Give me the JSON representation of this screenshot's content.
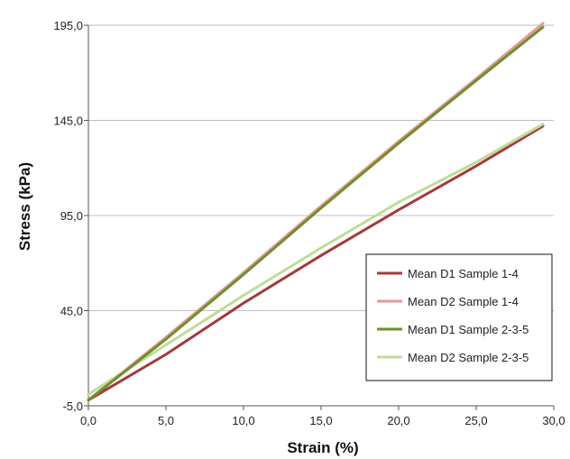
{
  "chart_data": {
    "type": "line",
    "title": "",
    "xlabel": "Strain (%)",
    "ylabel": "Stress (kPa)",
    "xlim": [
      0,
      30
    ],
    "ylim": [
      -5,
      195
    ],
    "x_ticks": [
      "0,0",
      "5,0",
      "10,0",
      "15,0",
      "20,0",
      "25,0",
      "30,0"
    ],
    "y_ticks": [
      "-5,0",
      "45,0",
      "95,0",
      "145,0",
      "195,0"
    ],
    "grid": "horizontal",
    "legend_position": "bottom-right",
    "series": [
      {
        "name": "Mean D1 Sample 1-4",
        "color": "#a33a3a",
        "x": [
          0,
          5,
          10,
          15,
          20,
          25,
          29.3
        ],
        "y": [
          -2,
          22,
          49,
          74,
          98,
          121,
          142
        ]
      },
      {
        "name": "Mean D2 Sample 1-4",
        "color": "#e69a9a",
        "x": [
          0,
          5,
          10,
          15,
          20,
          25,
          29.3
        ],
        "y": [
          -2,
          31,
          65,
          100,
          134,
          167,
          196
        ]
      },
      {
        "name": "Mean D1 Sample 2-3-5",
        "color": "#6e8f2e",
        "x": [
          0,
          5,
          10,
          15,
          20,
          25,
          29.3
        ],
        "y": [
          -2,
          30,
          64,
          99,
          133,
          166,
          194
        ]
      },
      {
        "name": "Mean D2 Sample 2-3-5",
        "color": "#bfdc9a",
        "x": [
          0,
          5,
          10,
          15,
          20,
          25,
          29.3
        ],
        "y": [
          1,
          27,
          53,
          78,
          102,
          123,
          143
        ]
      }
    ]
  }
}
